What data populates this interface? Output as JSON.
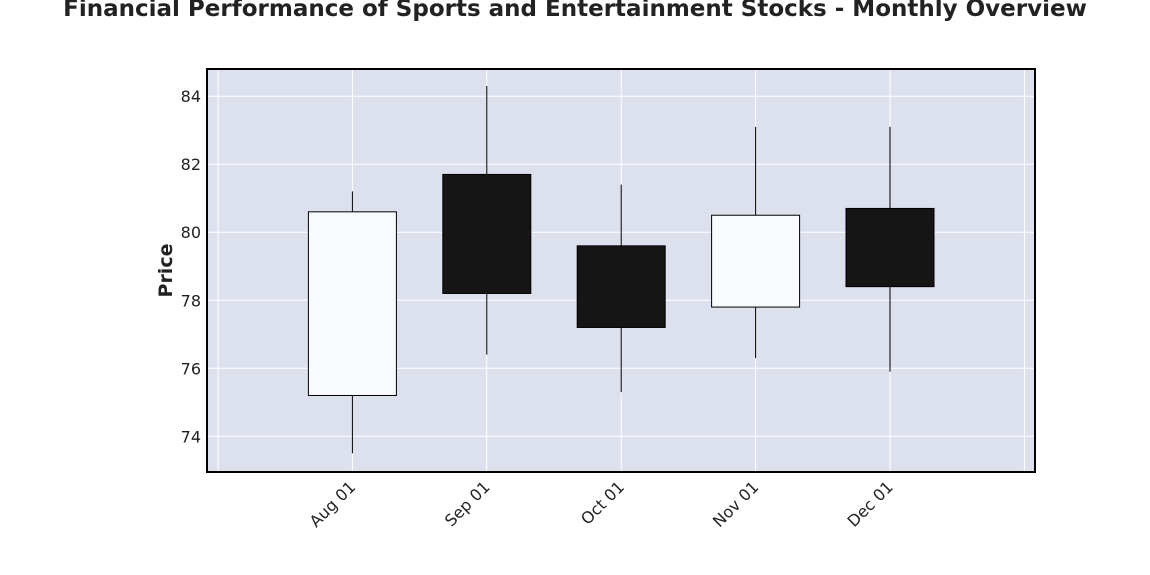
{
  "chart_data": {
    "type": "candlestick",
    "title": "Financial Performance of Sports and Entertainment Stocks - Monthly Overview",
    "xlabel": "",
    "ylabel": "Price",
    "ylim": [
      72.95,
      84.8
    ],
    "yticks": [
      74,
      76,
      78,
      80,
      82,
      84
    ],
    "grid": true,
    "categories": [
      "Aug 01",
      "Sep 01",
      "Oct 01",
      "Nov 01",
      "Dec 01"
    ],
    "open": [
      75.2,
      81.7,
      79.6,
      77.8,
      80.7
    ],
    "high": [
      81.2,
      84.3,
      81.4,
      83.1,
      83.1
    ],
    "low": [
      73.5,
      76.4,
      75.3,
      76.3,
      75.9
    ],
    "close": [
      80.6,
      78.2,
      77.2,
      80.5,
      78.4
    ],
    "colors": {
      "up": "#f8fafe",
      "down": "#151515",
      "background": "#dde1ee",
      "grid": "#ffffff",
      "edge": "#000000"
    }
  }
}
